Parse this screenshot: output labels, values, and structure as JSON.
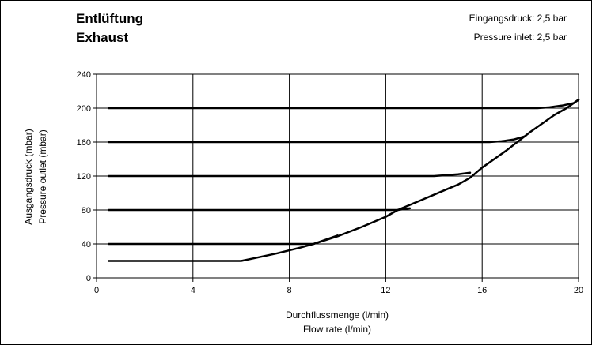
{
  "chart_data": {
    "type": "line",
    "title": "Entlüftung",
    "subtitle": "Exhaust",
    "annotations": [
      "Eingangsdruck: 2,5 bar",
      "Pressure inlet: 2,5 bar"
    ],
    "xlabel": "Durchflussmenge (l/min)",
    "xlabel2": "Flow rate (l/min)",
    "ylabel": "Ausgangsdruck (mbar)",
    "ylabel2": "Pressure outlet (mbar)",
    "xlim": [
      0,
      20
    ],
    "ylim": [
      0,
      240
    ],
    "xticks": [
      0,
      4,
      8,
      12,
      16,
      20
    ],
    "yticks": [
      0,
      40,
      80,
      120,
      160,
      200,
      240
    ],
    "grid": true,
    "legend": "none",
    "line_color": "#000000",
    "series": [
      {
        "x": [
          0.5,
          6.0,
          6.5,
          7.5,
          8.5,
          9.0,
          10.0
        ],
        "y": [
          20,
          20,
          23,
          29,
          36,
          40,
          50
        ]
      },
      {
        "x": [
          0.5,
          9.0
        ],
        "y": [
          40,
          40
        ]
      },
      {
        "x": [
          9.0,
          10.0,
          11.0,
          12.0,
          12.5,
          13.0
        ],
        "y": [
          40,
          49,
          60,
          72,
          80,
          82
        ]
      },
      {
        "x": [
          0.5,
          12.5
        ],
        "y": [
          80,
          80
        ]
      },
      {
        "x": [
          12.5,
          13.5,
          14.5,
          15.0,
          15.5,
          16.0,
          17.0,
          18.0,
          19.0,
          19.5,
          20.0
        ],
        "y": [
          80,
          92,
          104,
          110,
          118,
          130,
          150,
          172,
          192,
          200,
          210
        ]
      },
      {
        "x": [
          0.5,
          14.0,
          14.5,
          15.0,
          15.5
        ],
        "y": [
          120,
          120,
          121,
          122,
          124
        ]
      },
      {
        "x": [
          0.5,
          16.3,
          16.8,
          17.3,
          17.8
        ],
        "y": [
          160,
          160,
          161,
          163,
          167
        ]
      },
      {
        "x": [
          0.5,
          18.3,
          18.8,
          19.3,
          19.8,
          20.0
        ],
        "y": [
          200,
          200,
          201,
          203,
          206,
          210
        ]
      }
    ]
  }
}
